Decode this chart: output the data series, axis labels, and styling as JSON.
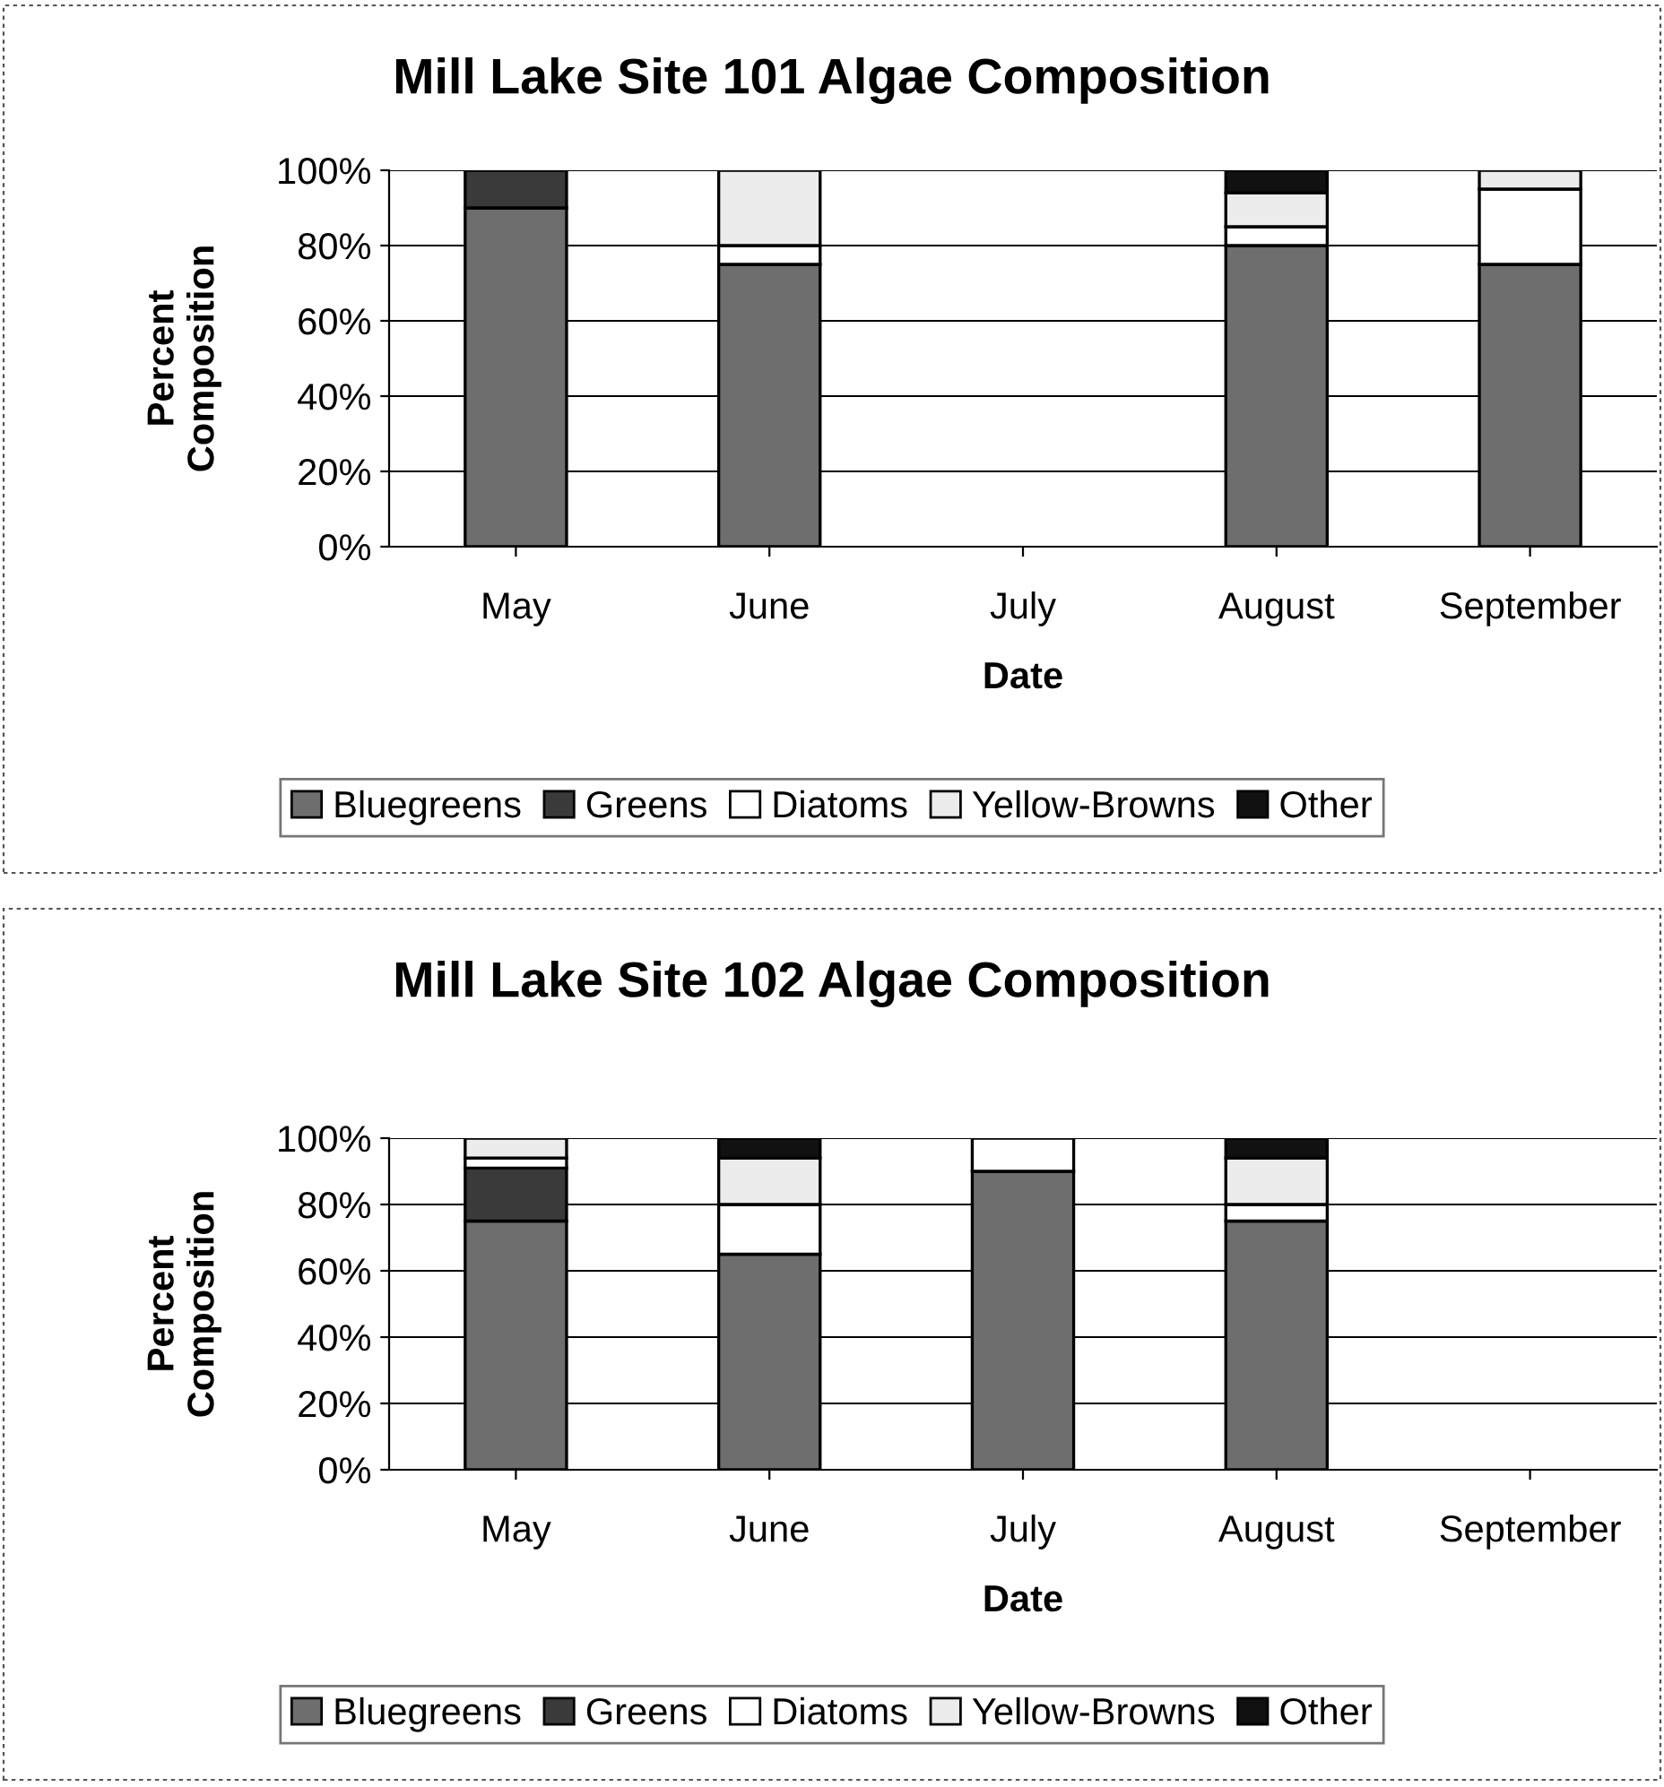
{
  "chart_data": [
    {
      "type": "bar",
      "title": "Mill Lake Site 101 Algae Composition",
      "xlabel": "Date",
      "ylabel": "Percent\nComposition",
      "stacked": true,
      "grid": "y",
      "legend": "bottom",
      "categories": [
        "May",
        "June",
        "July",
        "August",
        "September"
      ],
      "ylim": [
        0,
        100
      ],
      "yticks": [
        {
          "value": 0,
          "label": "0%"
        },
        {
          "value": 20,
          "label": "20%"
        },
        {
          "value": 40,
          "label": "40%"
        },
        {
          "value": 60,
          "label": "60%"
        },
        {
          "value": 80,
          "label": "80%"
        },
        {
          "value": 100,
          "label": "100%"
        }
      ],
      "series": [
        {
          "name": "Bluegreens",
          "color": "#6e6e6e",
          "values": [
            90,
            75,
            null,
            80,
            75
          ]
        },
        {
          "name": "Greens",
          "color": "#3a3a3a",
          "values": [
            10,
            0,
            null,
            0,
            0
          ]
        },
        {
          "name": "Diatoms",
          "color": "#ffffff",
          "values": [
            0,
            5,
            null,
            5,
            20
          ]
        },
        {
          "name": "Yellow-Browns",
          "color": "#ececec",
          "values": [
            0,
            20,
            null,
            9,
            5
          ]
        },
        {
          "name": "Other",
          "color": "#111111",
          "values": [
            0,
            0,
            null,
            6,
            0
          ]
        }
      ]
    },
    {
      "type": "bar",
      "title": "Mill Lake Site 102 Algae Composition",
      "xlabel": "Date",
      "ylabel": "Percent\nComposition",
      "stacked": true,
      "grid": "y",
      "legend": "bottom",
      "categories": [
        "May",
        "June",
        "July",
        "August",
        "September"
      ],
      "ylim": [
        0,
        100
      ],
      "yticks": [
        {
          "value": 0,
          "label": "0%"
        },
        {
          "value": 20,
          "label": "20%"
        },
        {
          "value": 40,
          "label": "40%"
        },
        {
          "value": 60,
          "label": "60%"
        },
        {
          "value": 80,
          "label": "80%"
        },
        {
          "value": 100,
          "label": "100%"
        }
      ],
      "series": [
        {
          "name": "Bluegreens",
          "color": "#6e6e6e",
          "values": [
            75,
            65,
            90,
            75,
            null
          ]
        },
        {
          "name": "Greens",
          "color": "#3a3a3a",
          "values": [
            16,
            0,
            0,
            0,
            null
          ]
        },
        {
          "name": "Diatoms",
          "color": "#ffffff",
          "values": [
            3,
            15,
            10,
            5,
            null
          ]
        },
        {
          "name": "Yellow-Browns",
          "color": "#ececec",
          "values": [
            6,
            14,
            0,
            14,
            null
          ]
        },
        {
          "name": "Other",
          "color": "#111111",
          "values": [
            0,
            6,
            0,
            6,
            null
          ]
        }
      ]
    }
  ]
}
